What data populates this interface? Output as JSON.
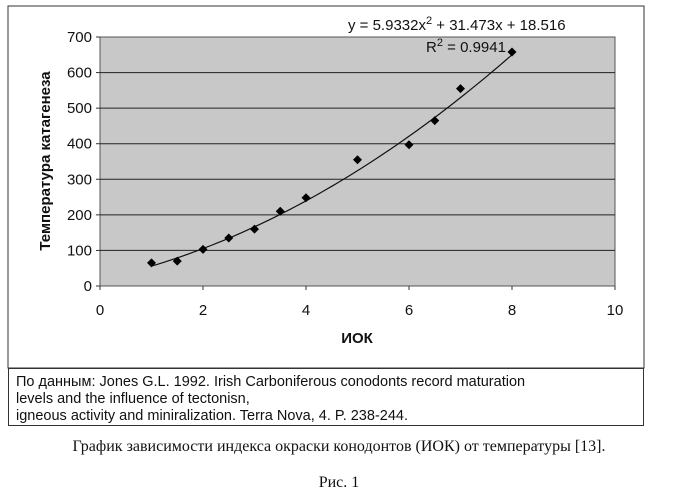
{
  "chart_data": {
    "type": "scatter",
    "xlabel": "ИОК",
    "ylabel": "Температура катагенеза",
    "xlim": [
      0,
      10
    ],
    "ylim": [
      0,
      700
    ],
    "x_ticks": [
      0,
      2,
      4,
      6,
      8,
      10
    ],
    "y_ticks": [
      0,
      100,
      200,
      300,
      400,
      500,
      600,
      700
    ],
    "grid": "horizontal",
    "points": [
      {
        "x": 1,
        "y": 65
      },
      {
        "x": 1.5,
        "y": 70
      },
      {
        "x": 2,
        "y": 103
      },
      {
        "x": 2.5,
        "y": 135
      },
      {
        "x": 3,
        "y": 160
      },
      {
        "x": 3.5,
        "y": 210
      },
      {
        "x": 4,
        "y": 248
      },
      {
        "x": 5,
        "y": 355
      },
      {
        "x": 6,
        "y": 397
      },
      {
        "x": 6.5,
        "y": 465
      },
      {
        "x": 7,
        "y": 555
      },
      {
        "x": 8,
        "y": 658
      }
    ],
    "trendline": {
      "type": "polynomial",
      "a": 5.9332,
      "b": 31.473,
      "c": 18.516,
      "x_range": [
        1,
        8
      ]
    },
    "equation_text": {
      "prefix": "y = 5.9332x",
      "sup": "2",
      "suffix": " + 31.473x + 18.516"
    },
    "r2_text": {
      "prefix": "R",
      "sup": "2",
      "suffix": " = 0.9941"
    }
  },
  "source_note": {
    "line1": "По данным: Jones G.L. 1992. Irish Carboniferous conodonts record maturation",
    "line2": "levels and the influence of tectonisn,",
    "line3": "igneous activity and miniralization. Terra Nova, 4. P. 238-244."
  },
  "caption": "График зависимости индекса окраски конодонтов (ИОК) от температуры [13].",
  "figure_label": "Рис. 1"
}
